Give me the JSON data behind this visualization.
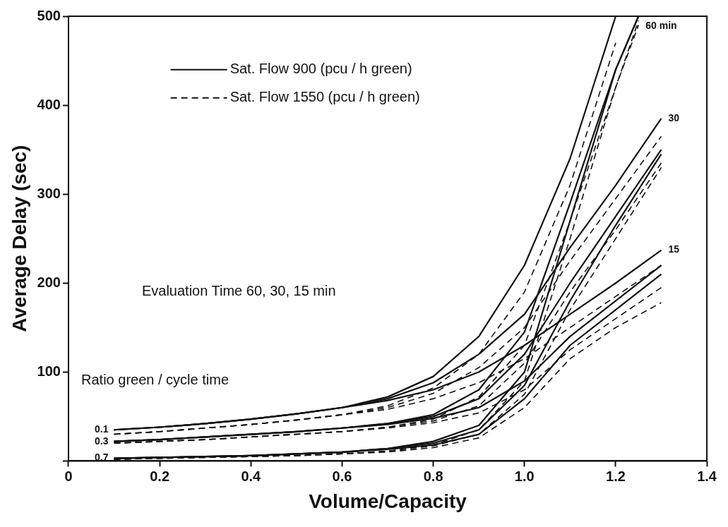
{
  "chart_data": {
    "type": "line",
    "xlabel": "Volume/Capacity",
    "ylabel": "Average Delay (sec)",
    "xlim": [
      0,
      1.4
    ],
    "ylim": [
      0,
      500
    ],
    "xticks": [
      0,
      0.2,
      0.4,
      0.6,
      0.8,
      {
        "value": 1,
        "label": "1.0"
      },
      1.2,
      1.4
    ],
    "yticks": [
      {
        "value": 0,
        "label": null
      },
      100,
      200,
      300,
      400,
      500
    ],
    "grid": false,
    "legend": "top left",
    "marker": "none",
    "series": [
      {
        "name": "Sat. Flow 900 (pcu / h green)",
        "color": "#111111",
        "line_style": "solid",
        "x": [
          0.1,
          0.2,
          0.3,
          0.4,
          0.5,
          0.6,
          0.7,
          0.8,
          0.9,
          1.0,
          1.1,
          1.2
        ],
        "values": [
          35,
          38,
          42,
          47,
          53,
          60,
          72,
          95,
          140,
          220,
          340,
          500
        ]
      },
      {
        "color": "#111111",
        "line_style": "solid",
        "x": [
          0.1,
          0.2,
          0.3,
          0.4,
          0.5,
          0.6,
          0.7,
          0.8,
          0.9,
          1.0,
          1.1,
          1.2,
          1.25
        ],
        "values": [
          22,
          24,
          27,
          30,
          33,
          37,
          42,
          52,
          80,
          145,
          290,
          440,
          500
        ]
      },
      {
        "color": "#111111",
        "line_style": "solid",
        "x": [
          0.1,
          0.2,
          0.3,
          0.4,
          0.5,
          0.6,
          0.7,
          0.8,
          0.9,
          1.0,
          1.1,
          1.2,
          1.25
        ],
        "values": [
          3,
          4,
          5,
          6,
          8,
          10,
          14,
          22,
          40,
          100,
          270,
          440,
          500
        ]
      },
      {
        "color": "#111111",
        "line_style": "solid",
        "x": [
          0.1,
          0.2,
          0.3,
          0.4,
          0.5,
          0.6,
          0.7,
          0.8,
          0.9,
          1.0,
          1.1,
          1.2,
          1.3
        ],
        "values": [
          35,
          38,
          42,
          47,
          53,
          60,
          70,
          88,
          120,
          165,
          240,
          310,
          385
        ]
      },
      {
        "color": "#111111",
        "line_style": "solid",
        "x": [
          0.1,
          0.2,
          0.3,
          0.4,
          0.5,
          0.6,
          0.7,
          0.8,
          0.9,
          1.0,
          1.1,
          1.2,
          1.3
        ],
        "values": [
          22,
          24,
          27,
          30,
          33,
          37,
          42,
          50,
          70,
          120,
          200,
          275,
          350
        ]
      },
      {
        "color": "#111111",
        "line_style": "solid",
        "x": [
          0.1,
          0.2,
          0.3,
          0.4,
          0.5,
          0.6,
          0.7,
          0.8,
          0.9,
          1.0,
          1.1,
          1.2,
          1.3
        ],
        "values": [
          3,
          4,
          5,
          6,
          8,
          10,
          14,
          20,
          35,
          85,
          180,
          265,
          345
        ]
      },
      {
        "color": "#111111",
        "line_style": "solid",
        "x": [
          0.1,
          0.2,
          0.3,
          0.4,
          0.5,
          0.6,
          0.7,
          0.8,
          0.9,
          1.0,
          1.1,
          1.2,
          1.3
        ],
        "values": [
          35,
          38,
          42,
          47,
          53,
          60,
          68,
          80,
          100,
          130,
          165,
          200,
          237
        ]
      },
      {
        "color": "#111111",
        "line_style": "solid",
        "x": [
          0.1,
          0.2,
          0.3,
          0.4,
          0.5,
          0.6,
          0.7,
          0.8,
          0.9,
          1.0,
          1.1,
          1.2,
          1.3
        ],
        "values": [
          22,
          24,
          27,
          30,
          33,
          37,
          41,
          48,
          60,
          90,
          140,
          180,
          220
        ]
      },
      {
        "color": "#111111",
        "line_style": "solid",
        "x": [
          0.1,
          0.2,
          0.3,
          0.4,
          0.5,
          0.6,
          0.7,
          0.8,
          0.9,
          1.0,
          1.1,
          1.2,
          1.3
        ],
        "values": [
          3,
          4,
          5,
          6,
          8,
          10,
          13,
          18,
          30,
          70,
          130,
          170,
          210
        ]
      },
      {
        "name": "Sat. Flow 1550 (pcu / h green)",
        "color": "#111111",
        "line_style": "dashed",
        "x": [
          0.1,
          0.2,
          0.3,
          0.4,
          0.5,
          0.6,
          0.7,
          0.8,
          0.9,
          1.0,
          1.1,
          1.2
        ],
        "values": [
          30,
          33,
          37,
          41,
          46,
          52,
          62,
          82,
          120,
          190,
          310,
          470
        ]
      },
      {
        "color": "#111111",
        "line_style": "dashed",
        "x": [
          0.1,
          0.2,
          0.3,
          0.4,
          0.5,
          0.6,
          0.7,
          0.8,
          0.9,
          1.0,
          1.1,
          1.2,
          1.25
        ],
        "values": [
          20,
          22,
          24,
          27,
          30,
          33,
          38,
          47,
          72,
          130,
          270,
          420,
          495
        ]
      },
      {
        "color": "#111111",
        "line_style": "dashed",
        "x": [
          0.1,
          0.2,
          0.3,
          0.4,
          0.5,
          0.6,
          0.7,
          0.8,
          0.9,
          1.0,
          1.1,
          1.2,
          1.25
        ],
        "values": [
          2,
          3,
          4,
          5,
          6,
          8,
          11,
          18,
          35,
          90,
          250,
          420,
          490
        ]
      },
      {
        "color": "#111111",
        "line_style": "dashed",
        "x": [
          0.1,
          0.2,
          0.3,
          0.4,
          0.5,
          0.6,
          0.7,
          0.8,
          0.9,
          1.0,
          1.1,
          1.2,
          1.3
        ],
        "values": [
          30,
          33,
          37,
          41,
          46,
          52,
          60,
          76,
          105,
          150,
          225,
          295,
          365
        ]
      },
      {
        "color": "#111111",
        "line_style": "dashed",
        "x": [
          0.1,
          0.2,
          0.3,
          0.4,
          0.5,
          0.6,
          0.7,
          0.8,
          0.9,
          1.0,
          1.1,
          1.2,
          1.3
        ],
        "values": [
          20,
          22,
          24,
          27,
          30,
          33,
          38,
          45,
          62,
          110,
          190,
          260,
          335
        ]
      },
      {
        "color": "#111111",
        "line_style": "dashed",
        "x": [
          0.1,
          0.2,
          0.3,
          0.4,
          0.5,
          0.6,
          0.7,
          0.8,
          0.9,
          1.0,
          1.1,
          1.2,
          1.3
        ],
        "values": [
          2,
          3,
          4,
          5,
          6,
          8,
          11,
          17,
          30,
          75,
          170,
          250,
          330
        ]
      },
      {
        "color": "#111111",
        "line_style": "dashed",
        "x": [
          0.1,
          0.2,
          0.3,
          0.4,
          0.5,
          0.6,
          0.7,
          0.8,
          0.9,
          1.0,
          1.1,
          1.2,
          1.3
        ],
        "values": [
          30,
          33,
          37,
          41,
          46,
          52,
          58,
          70,
          88,
          115,
          150,
          185,
          220
        ]
      },
      {
        "color": "#111111",
        "line_style": "dashed",
        "x": [
          0.1,
          0.2,
          0.3,
          0.4,
          0.5,
          0.6,
          0.7,
          0.8,
          0.9,
          1.0,
          1.1,
          1.2,
          1.3
        ],
        "values": [
          20,
          22,
          24,
          27,
          30,
          33,
          37,
          43,
          54,
          80,
          125,
          160,
          195
        ]
      },
      {
        "color": "#111111",
        "line_style": "dashed",
        "x": [
          0.1,
          0.2,
          0.3,
          0.4,
          0.5,
          0.6,
          0.7,
          0.8,
          0.9,
          1.0,
          1.1,
          1.2,
          1.3
        ],
        "values": [
          2,
          3,
          4,
          5,
          6,
          8,
          10,
          15,
          26,
          60,
          115,
          150,
          178
        ]
      }
    ],
    "annotations": [
      {
        "text": "60 min",
        "x": 1.25,
        "y": 500
      },
      {
        "text": "30",
        "x": 1.3,
        "y": 385
      },
      {
        "text": "15",
        "x": 1.3,
        "y": 237
      },
      {
        "text": "0.1",
        "x": 0.1,
        "y": 35
      },
      {
        "text": "0.3",
        "x": 0.1,
        "y": 22
      },
      {
        "text": "0.7",
        "x": 0.1,
        "y": 3
      },
      "Evaluation Time 60, 30, 15 min",
      "Ratio green / cycle time"
    ]
  }
}
